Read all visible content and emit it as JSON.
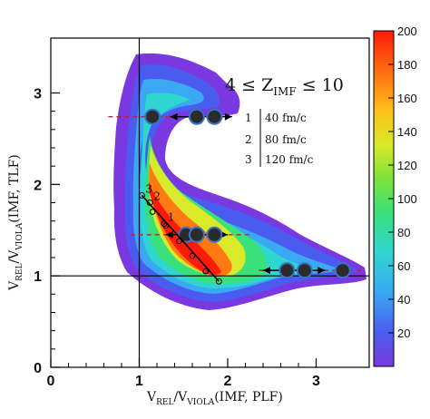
{
  "chart_data": {
    "type": "heatmap",
    "title": "",
    "annotation": {
      "prefix": "4 ≤ Z",
      "subscript": "IMF",
      "suffix": " ≤ 10"
    },
    "xlabel": {
      "main": "V",
      "sub1": "REL",
      "mid": "/V",
      "sub2": "VIOLA",
      "tail": "(IMF, PLF)"
    },
    "ylabel": {
      "main": "V",
      "sub1": "REL",
      "mid": "/V",
      "sub2": "VIOLA",
      "tail": "(IMF, TLF)"
    },
    "xlim": [
      0,
      3.6
    ],
    "ylim": [
      0,
      3.6
    ],
    "x_ticks": [
      "0",
      "1",
      "2",
      "3"
    ],
    "y_ticks": [
      "0",
      "1",
      "2",
      "3"
    ],
    "colorbar": {
      "range": [
        0,
        200
      ],
      "ticks": [
        "20",
        "40",
        "60",
        "80",
        "100",
        "120",
        "140",
        "160",
        "180",
        "200"
      ]
    },
    "reference_lines": {
      "x": 1.0,
      "y": 1.0
    },
    "time_legend": [
      {
        "id": "1",
        "text": "40 fm/c"
      },
      {
        "id": "2",
        "text": "80 fm/c"
      },
      {
        "id": "3",
        "text": "120 fm/c"
      }
    ],
    "trajectory": {
      "points": [
        {
          "label": "3",
          "x": 1.03,
          "y": 1.88
        },
        {
          "label": "2",
          "x": 1.12,
          "y": 1.8
        },
        {
          "label": "1",
          "x": 1.28,
          "y": 1.57
        },
        {
          "label": "",
          "x": 1.9,
          "y": 0.94
        }
      ],
      "markers": [
        {
          "x": 1.15,
          "y": 1.7
        },
        {
          "x": 1.3,
          "y": 1.55
        },
        {
          "x": 1.45,
          "y": 1.38
        },
        {
          "x": 1.6,
          "y": 1.22
        },
        {
          "x": 1.75,
          "y": 1.05
        }
      ]
    },
    "bands": [
      {
        "y": 2.74,
        "x_dashed": [
          0.65,
          1.95
        ],
        "dots": [
          1.15,
          1.65,
          1.85
        ],
        "arrow": [
          1.35,
          2.05
        ]
      },
      {
        "y": 1.45,
        "x_dashed": [
          0.9,
          2.25
        ],
        "dots": [
          1.53,
          1.65,
          1.85
        ],
        "arrow": [
          1.3,
          2.0
        ]
      },
      {
        "y": 1.06,
        "x_dashed": [
          2.35,
          3.55
        ],
        "dots": [
          2.67,
          2.87,
          3.3
        ],
        "arrow": [
          2.4,
          3.1
        ]
      }
    ]
  }
}
